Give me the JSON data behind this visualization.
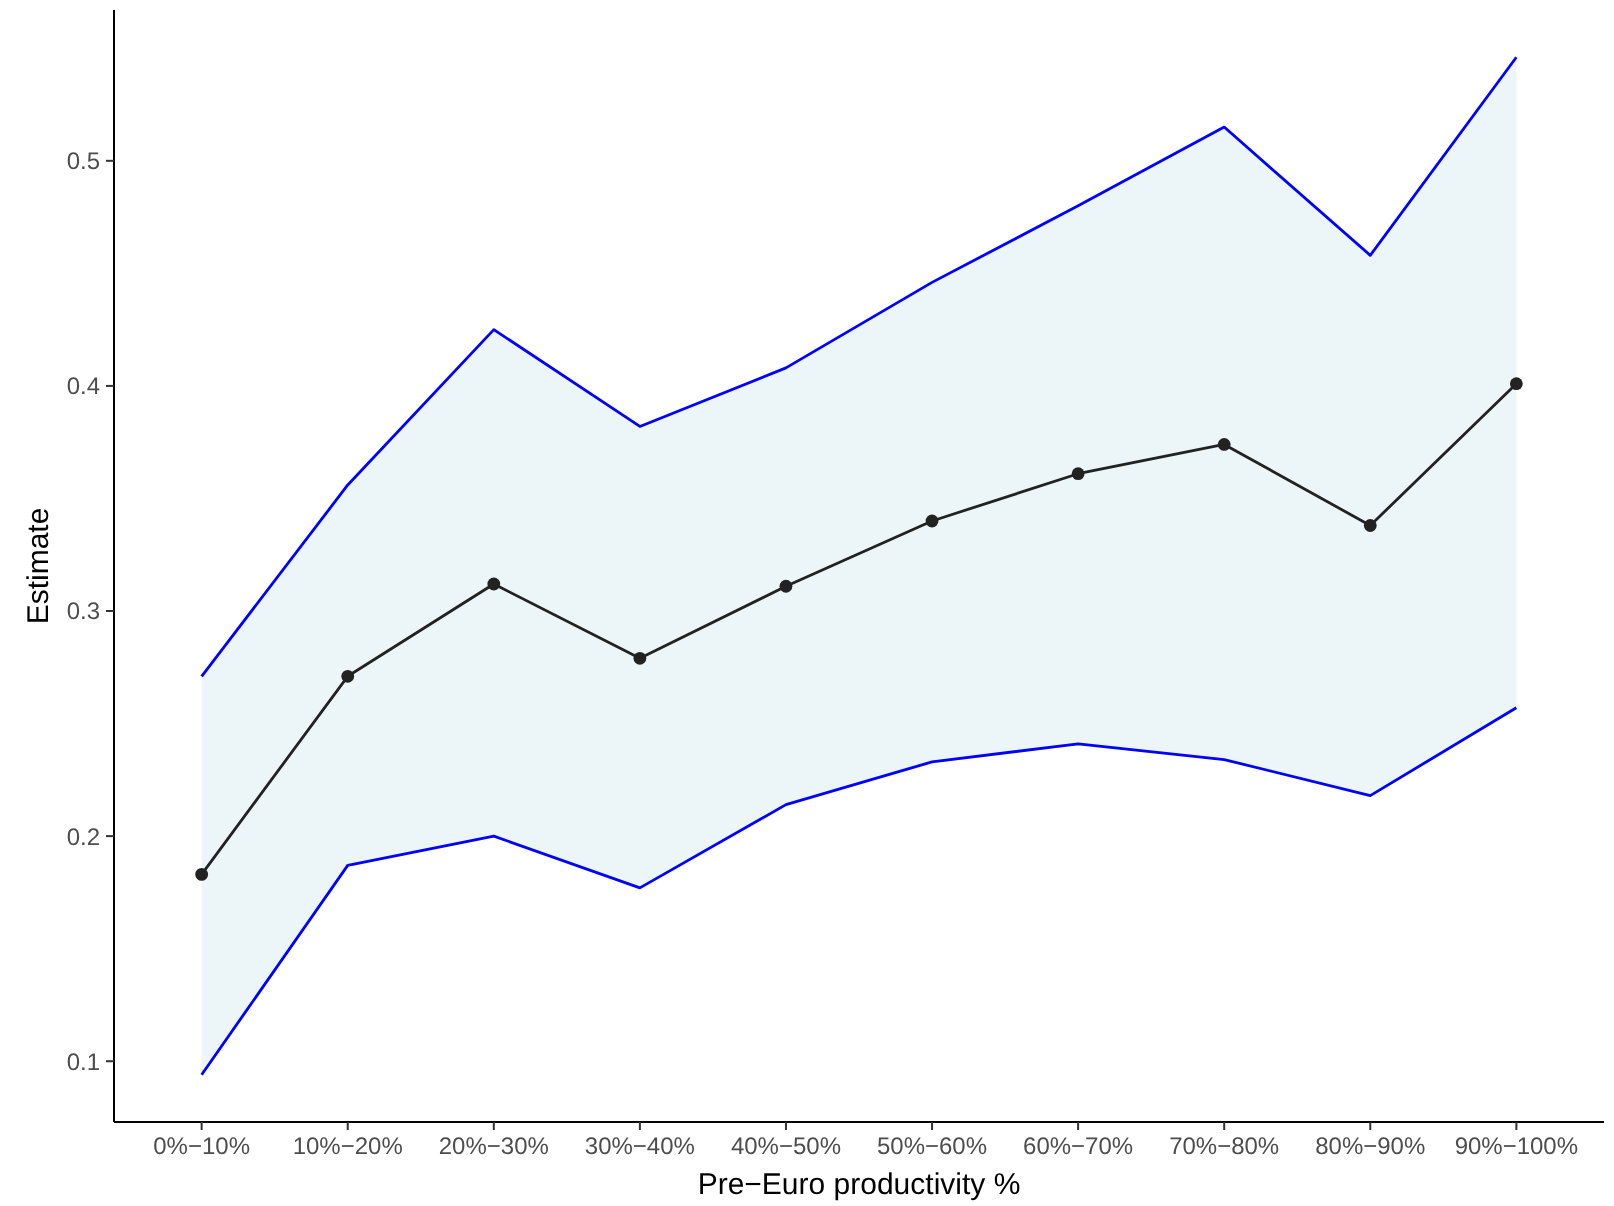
{
  "chart_data": {
    "type": "line",
    "xlabel": "Pre−Euro productivity %",
    "ylabel": "Estimate",
    "categories": [
      "0%−10%",
      "10%−20%",
      "20%−30%",
      "30%−40%",
      "40%−50%",
      "50%−60%",
      "60%−70%",
      "70%−80%",
      "80%−90%",
      "90%−100%"
    ],
    "series": [
      {
        "color": "#0000ff",
        "marker": "none",
        "values": [
          0.271,
          0.356,
          0.425,
          0.382,
          0.408,
          0.446,
          0.48,
          0.515,
          0.458,
          0.546
        ]
      },
      {
        "color": "#0000ff",
        "marker": "none",
        "values": [
          0.094,
          0.187,
          0.2,
          0.177,
          0.214,
          0.233,
          0.241,
          0.234,
          0.218,
          0.257
        ]
      },
      {
        "color": "#222222",
        "marker": "circle",
        "values": [
          0.183,
          0.271,
          0.312,
          0.279,
          0.311,
          0.34,
          0.361,
          0.374,
          0.338,
          0.401
        ],
        "lower": [
          0.094,
          0.187,
          0.2,
          0.177,
          0.214,
          0.233,
          0.241,
          0.234,
          0.218,
          0.257
        ],
        "upper": [
          0.271,
          0.356,
          0.425,
          0.382,
          0.408,
          0.446,
          0.48,
          0.515,
          0.458,
          0.546
        ]
      }
    ],
    "ylim": [
      0.073,
      0.567
    ],
    "yticks": [
      0.1,
      0.2,
      0.3,
      0.4,
      0.5
    ],
    "grid": false,
    "line_style": "solid"
  }
}
